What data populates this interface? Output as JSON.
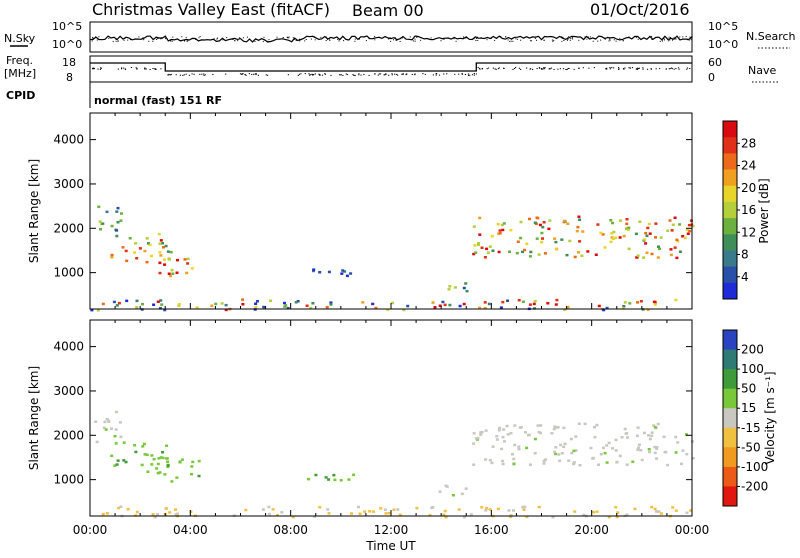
{
  "header": {
    "title": "Christmas Valley East (fitACF)",
    "beam": "Beam 00",
    "date": "01/Oct/2016"
  },
  "status": {
    "nsky_label": "N.Sky",
    "nsearch_label": "N.Search",
    "freq_label_line1": "Freq.",
    "freq_label_line2": "[MHz]",
    "nave_label": "Nave",
    "cpid_label": "CPID",
    "cpid_value": "normal (fast) 151 RF",
    "noise_ticks": [
      "10^5",
      "10^0"
    ],
    "freq_ticks": [
      "18",
      "8"
    ],
    "nave_ticks": [
      "60",
      "0"
    ]
  },
  "chart_data": [
    {
      "type": "heatmap",
      "title": "",
      "xlabel": "",
      "ylabel": "Slant Range [km]",
      "x_ticks": [
        "00:00",
        "04:00",
        "08:00",
        "12:00",
        "16:00",
        "20:00",
        "00:00"
      ],
      "y_ticks": [
        1000,
        2000,
        3000,
        4000
      ],
      "xlim_hours": [
        0,
        24
      ],
      "ylim_km": [
        180,
        4600
      ],
      "colorbar": {
        "label": "Power [dB]",
        "ticks": [
          4,
          8,
          12,
          16,
          20,
          24,
          28
        ],
        "colors": [
          "#1f2bd6",
          "#2a4fa8",
          "#3a7a8a",
          "#3f8e5a",
          "#6cb040",
          "#b5cf3a",
          "#e8d52c",
          "#f0a020",
          "#ec6a1a",
          "#e03018",
          "#d80c10"
        ]
      },
      "echo_regions": [
        {
          "t0": 0.1,
          "t1": 1.2,
          "r0": 1850,
          "r1": 2600,
          "level": "medium"
        },
        {
          "t0": 0.8,
          "t1": 3.2,
          "r0": 1200,
          "r1": 1900,
          "level": "high"
        },
        {
          "t0": 2.5,
          "t1": 4.4,
          "r0": 950,
          "r1": 1500,
          "level": "high"
        },
        {
          "t0": 8.2,
          "t1": 10.8,
          "r0": 950,
          "r1": 1150,
          "level": "low"
        },
        {
          "t0": 13.8,
          "t1": 15.0,
          "r0": 600,
          "r1": 900,
          "level": "medium"
        },
        {
          "t0": 15.2,
          "t1": 24.0,
          "r0": 1350,
          "r1": 2300,
          "level": "high"
        },
        {
          "t0": 0.0,
          "t1": 24.0,
          "r0": 180,
          "r1": 420,
          "level": "mixed"
        }
      ]
    },
    {
      "type": "heatmap",
      "title": "",
      "xlabel": "Time UT",
      "ylabel": "Slant Range [km]",
      "x_ticks": [
        "00:00",
        "04:00",
        "08:00",
        "12:00",
        "16:00",
        "20:00",
        "00:00"
      ],
      "y_ticks": [
        1000,
        2000,
        3000,
        4000
      ],
      "xlim_hours": [
        0,
        24
      ],
      "ylim_km": [
        180,
        4600
      ],
      "colorbar": {
        "label": "Velocity [m s⁻¹]",
        "ticks": [
          200,
          100,
          50,
          15,
          -15,
          -50,
          -100,
          -200
        ],
        "colors": [
          "#2a44c0",
          "#2e7a74",
          "#3f9a3a",
          "#78c83a",
          "#c8c8c0",
          "#f0c040",
          "#f09a20",
          "#ec5a18",
          "#e01810"
        ]
      },
      "echo_regions": [
        {
          "t0": 0.1,
          "t1": 1.2,
          "r0": 1850,
          "r1": 2600,
          "level": "ground"
        },
        {
          "t0": 0.8,
          "t1": 3.2,
          "r0": 1200,
          "r1": 1900,
          "level": "positive"
        },
        {
          "t0": 2.5,
          "t1": 4.4,
          "r0": 950,
          "r1": 1500,
          "level": "positive"
        },
        {
          "t0": 8.2,
          "t1": 10.8,
          "r0": 950,
          "r1": 1150,
          "level": "positive"
        },
        {
          "t0": 13.8,
          "t1": 15.0,
          "r0": 600,
          "r1": 900,
          "level": "ground"
        },
        {
          "t0": 15.2,
          "t1": 24.0,
          "r0": 1350,
          "r1": 2300,
          "level": "ground"
        },
        {
          "t0": 0.0,
          "t1": 24.0,
          "r0": 180,
          "r1": 420,
          "level": "negative"
        }
      ]
    }
  ]
}
